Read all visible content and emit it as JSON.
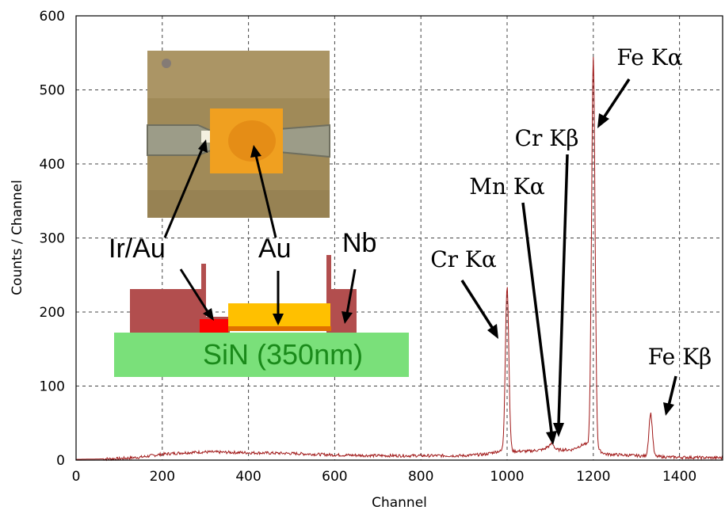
{
  "chart_data": {
    "type": "line",
    "xlabel": "Channel",
    "ylabel": "Counts / Channel",
    "xlim": [
      0,
      1500
    ],
    "ylim": [
      0,
      600
    ],
    "x_ticks": [
      0,
      200,
      400,
      600,
      800,
      1000,
      1200,
      1400
    ],
    "y_ticks": [
      0,
      100,
      200,
      300,
      400,
      500,
      600
    ],
    "grid": true,
    "line_color": "#a01818",
    "peaks": [
      {
        "label": "Cr Kα",
        "channel": 1000,
        "counts": 235
      },
      {
        "label": "Mn Kα",
        "channel": 1095,
        "counts": 18
      },
      {
        "label": "Cr Kβ",
        "channel": 1105,
        "counts": 22
      },
      {
        "label": "Fe Kα",
        "channel": 1200,
        "counts": 545
      },
      {
        "label": "Fe Kβ",
        "channel": 1333,
        "counts": 63
      }
    ],
    "baseline": [
      [
        0,
        1
      ],
      [
        100,
        2
      ],
      [
        150,
        4
      ],
      [
        200,
        8
      ],
      [
        250,
        10
      ],
      [
        300,
        11
      ],
      [
        400,
        10
      ],
      [
        500,
        9
      ],
      [
        600,
        7
      ],
      [
        700,
        6
      ],
      [
        800,
        6
      ],
      [
        900,
        6
      ],
      [
        950,
        8
      ],
      [
        980,
        12
      ],
      [
        1050,
        12
      ],
      [
        1080,
        14
      ],
      [
        1150,
        14
      ],
      [
        1180,
        22
      ],
      [
        1230,
        8
      ],
      [
        1300,
        6
      ],
      [
        1380,
        4
      ],
      [
        1500,
        3
      ]
    ]
  },
  "inset": {
    "labels": {
      "ir_au": "Ir/Au",
      "au": "Au",
      "nb": "Nb",
      "sin": "SiN (350nm)"
    },
    "colors": {
      "nb": "#b24e4e",
      "au": "#ffc000",
      "ir": "#ff0000",
      "orange": "#e07000",
      "sin": "#7ae07a",
      "sin_text": "#1a8a1a",
      "photo_bg": "#a08a58",
      "photo_pad": "#f0a020"
    }
  }
}
